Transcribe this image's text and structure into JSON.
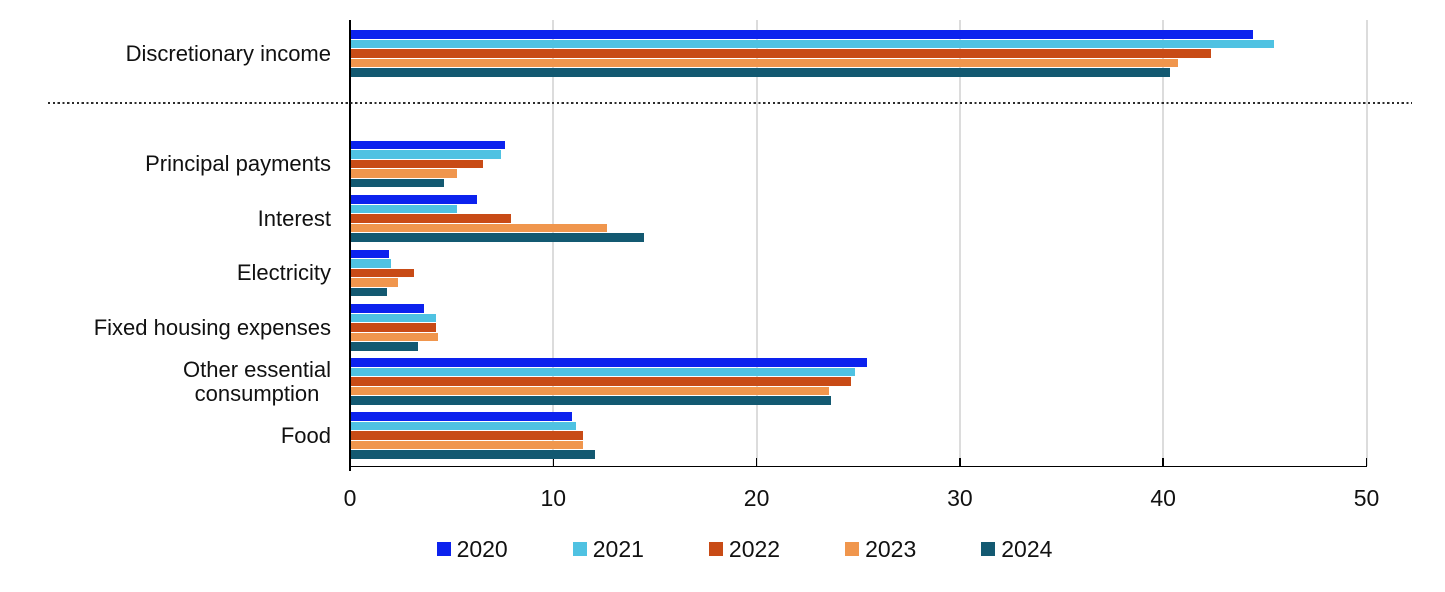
{
  "chart_data": {
    "type": "bar",
    "orientation": "horizontal",
    "title": "",
    "xlabel": "",
    "ylabel": "",
    "xlim": [
      0,
      50
    ],
    "x_ticks": [
      0,
      10,
      20,
      30,
      40,
      50
    ],
    "grid": "vertical-light-gray",
    "legend_position": "bottom",
    "categories": [
      "Discretionary income",
      "Principal payments",
      "Interest",
      "Electricity",
      "Fixed housing expenses",
      "Other essential\nconsumption",
      "Food"
    ],
    "separator_after_category_index": 0,
    "series": [
      {
        "name": "2020",
        "color": "#0c22ee",
        "values": [
          44.4,
          7.6,
          6.2,
          1.9,
          3.6,
          25.4,
          10.9
        ]
      },
      {
        "name": "2021",
        "color": "#4fc2e2",
        "values": [
          45.4,
          7.4,
          5.2,
          2.0,
          4.2,
          24.8,
          11.1
        ]
      },
      {
        "name": "2022",
        "color": "#c84b16",
        "values": [
          42.3,
          6.5,
          7.9,
          3.1,
          4.2,
          24.6,
          11.4
        ]
      },
      {
        "name": "2023",
        "color": "#f0964d",
        "values": [
          40.7,
          5.2,
          12.6,
          2.3,
          4.3,
          23.5,
          11.4
        ]
      },
      {
        "name": "2024",
        "color": "#135971",
        "values": [
          40.3,
          4.6,
          14.4,
          1.8,
          3.3,
          23.6,
          12.0
        ]
      }
    ]
  },
  "layout_colors": {
    "background": "#ffffff",
    "gridline": "#dcdcdc",
    "axis": "#000000",
    "text": "#111111",
    "separator": "#2b2b2b"
  }
}
